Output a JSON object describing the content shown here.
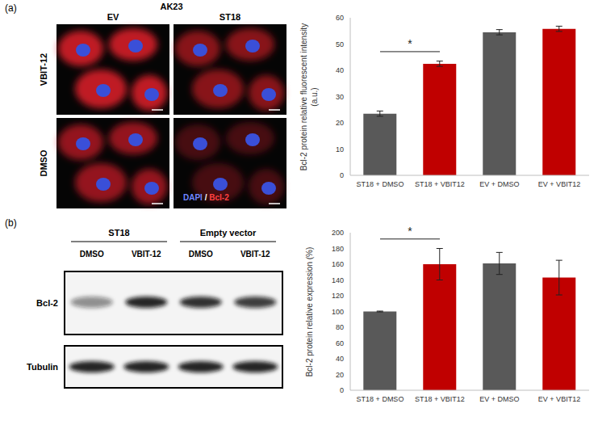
{
  "panel_a": {
    "label": "(a)",
    "cell_line": "AK23",
    "columns": [
      "EV",
      "ST18"
    ],
    "rows": [
      "VBIT-12",
      "DMSO"
    ],
    "stain_legend": "DAPI / Bcl-2"
  },
  "panel_b": {
    "label": "(b)",
    "groups": [
      "ST18",
      "Empty vector"
    ],
    "lanes": [
      "DMSO",
      "VBIT-12",
      "DMSO",
      "VBIT-12"
    ],
    "blots": [
      "Bcl-2",
      "Tubulin"
    ]
  },
  "chart_data": [
    {
      "type": "bar",
      "y_label": "Bcl-2 protein relative fluorescent intensity (a.u.)",
      "categories": [
        "ST18 + DMSO",
        "ST18 + VBIT12",
        "EV + DMSO",
        "EV + VBIT12"
      ],
      "values": [
        23.5,
        42.5,
        54.5,
        55.8
      ],
      "errors": [
        1,
        1,
        1,
        1
      ],
      "colors": [
        "#595959",
        "#c00000",
        "#595959",
        "#c00000"
      ],
      "ylim": [
        0,
        60
      ],
      "yticks": [
        0,
        10,
        20,
        30,
        40,
        50,
        60
      ],
      "significance": [
        {
          "from": "ST18 + DMSO",
          "to": "ST18 + VBIT12",
          "label": "*"
        }
      ]
    },
    {
      "type": "bar",
      "y_label": "Bcl-2 protein relative expression (%)",
      "categories": [
        "ST18 + DMSO",
        "ST18 + VBIT12",
        "EV + DMSO",
        "EV + VBIT12"
      ],
      "values": [
        100,
        160,
        161,
        143
      ],
      "errors": [
        0.5,
        20,
        14,
        22
      ],
      "colors": [
        "#595959",
        "#c00000",
        "#595959",
        "#c00000"
      ],
      "ylim": [
        0,
        200
      ],
      "yticks": [
        0,
        20,
        40,
        60,
        80,
        100,
        120,
        140,
        160,
        180,
        200
      ],
      "significance": [
        {
          "from": "ST18 + DMSO",
          "to": "ST18 + VBIT12",
          "label": "*"
        }
      ]
    }
  ]
}
